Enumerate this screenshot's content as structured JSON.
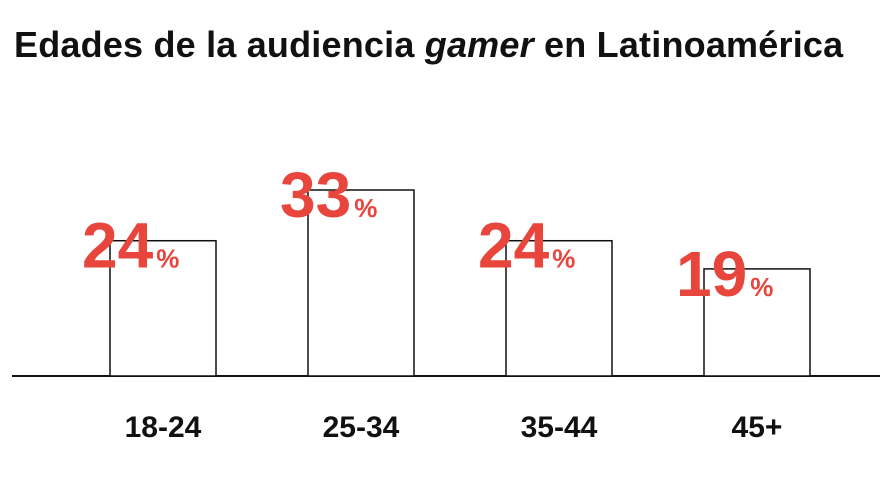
{
  "title": {
    "before": "Edades de la audiencia ",
    "emphasis": "gamer",
    "after": " en Latinoamérica"
  },
  "colors": {
    "value": "#e8453c",
    "text": "#111111",
    "bar_stroke": "#111111",
    "bar_fill": "#ffffff"
  },
  "chart_data": {
    "type": "bar",
    "title": "Edades de la audiencia gamer en Latinoamérica",
    "categories": [
      "18-24",
      "25-34",
      "35-44",
      "45+"
    ],
    "values": [
      24,
      33,
      24,
      19
    ],
    "value_suffix": "%",
    "xlabel": "",
    "ylabel": "",
    "ylim": [
      0,
      33
    ],
    "grid": false,
    "legend": "none"
  }
}
